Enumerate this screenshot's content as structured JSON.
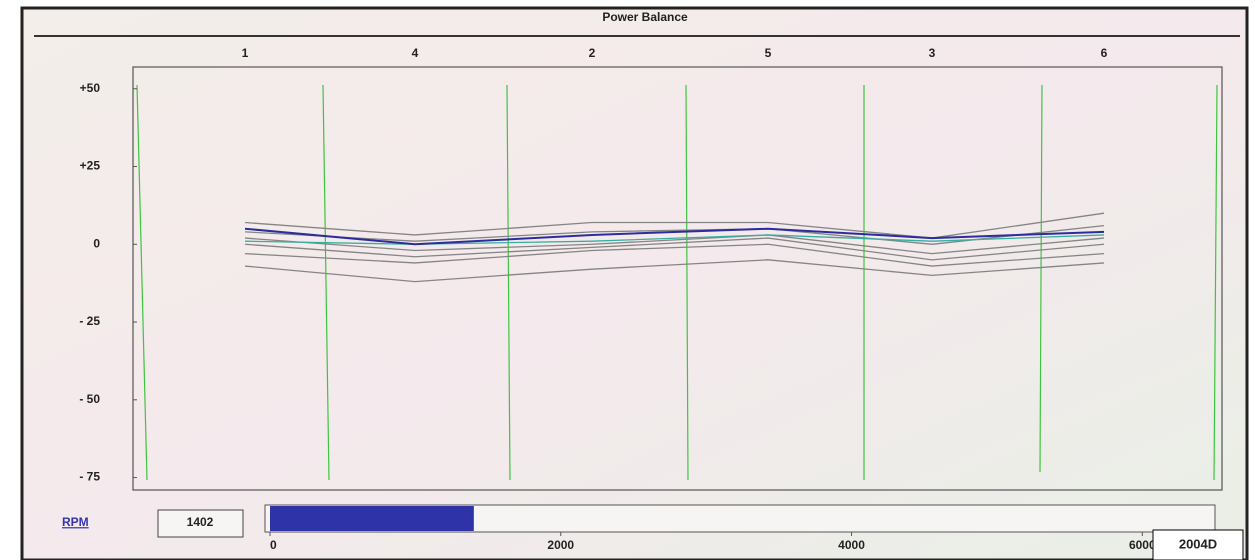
{
  "chart_data": {
    "type": "line",
    "title": "Power Balance",
    "categories": [
      "1",
      "4",
      "2",
      "5",
      "3",
      "6"
    ],
    "series": [
      {
        "color": "#858585",
        "values": [
          7,
          3,
          7,
          7,
          2,
          10
        ]
      },
      {
        "color": "#858585",
        "values": [
          4,
          1,
          4,
          5,
          0,
          6
        ]
      },
      {
        "color": "#858585",
        "values": [
          2,
          -2,
          0,
          3,
          -3,
          2
        ]
      },
      {
        "color": "#858585",
        "values": [
          0,
          -4,
          -1,
          2,
          -5,
          0
        ]
      },
      {
        "color": "#858585",
        "values": [
          -3,
          -6,
          -2,
          0,
          -7,
          -3
        ]
      },
      {
        "color": "#858585",
        "values": [
          -7,
          -12,
          -8,
          -5,
          -10,
          -6
        ]
      },
      {
        "color": "#35b0a0",
        "values": [
          1,
          0,
          1,
          3,
          1,
          3
        ]
      },
      {
        "color": "#2b2d9c",
        "values": [
          5,
          0,
          3,
          5,
          2,
          4
        ]
      }
    ],
    "ylim": [
      -79,
      57
    ],
    "yticks": [
      {
        "value": 50,
        "label": "+50"
      },
      {
        "value": 25,
        "label": "+25"
      },
      0,
      {
        "value": -25,
        "label": "- 25"
      },
      {
        "value": -50,
        "label": "- 50"
      },
      {
        "value": -75,
        "label": "- 75"
      }
    ],
    "grid": false
  },
  "rpm_gauge": {
    "label": "RPM",
    "value": 1402,
    "xlim": [
      0,
      6500
    ],
    "xticks": [
      0,
      2000,
      4000,
      6000
    ],
    "color": "#2f33a8"
  },
  "figure_id": "2004D"
}
